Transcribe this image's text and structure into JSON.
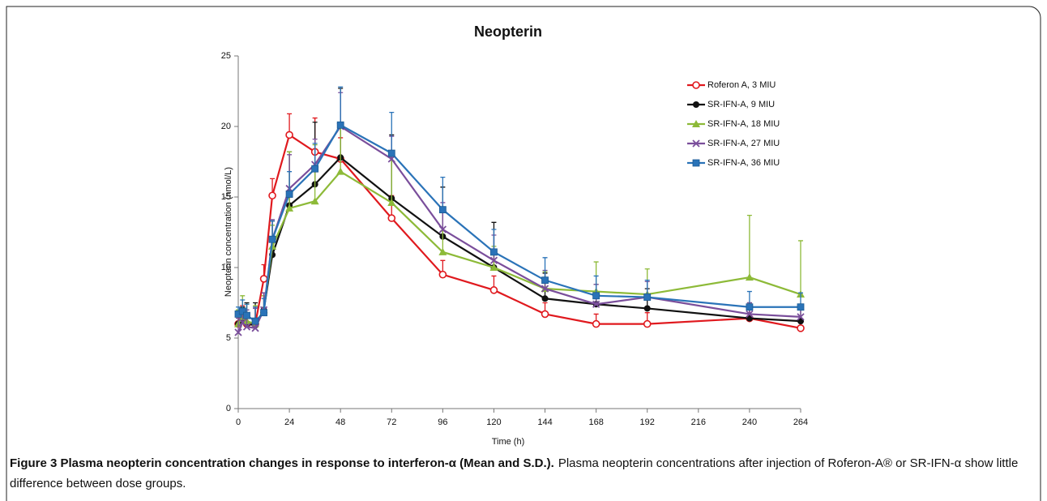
{
  "chart_data": {
    "type": "line",
    "title": "Neopterin",
    "x_label": "Time (h)",
    "y_label": "Neopterin concentration (nmol/L)",
    "caption_title": "Figure 3 Plasma neopterin concentration changes in response to interferon-α (Mean and S.D.).",
    "caption_text": "Plasma neopterin concentrations after injection of Roferon-A® or SR-IFN-α show little difference between dose groups.",
    "x": [
      0,
      2,
      4,
      8,
      12,
      16,
      24,
      36,
      48,
      72,
      96,
      120,
      144,
      168,
      192,
      240,
      264
    ],
    "xlim": [
      0,
      264
    ],
    "xticks": [
      0,
      24,
      48,
      72,
      96,
      120,
      144,
      168,
      192,
      216,
      240,
      264
    ],
    "ylim": [
      0,
      25
    ],
    "yticks": [
      0,
      5,
      10,
      15,
      20,
      25
    ],
    "grid": false,
    "legend": "upper right",
    "series": [
      {
        "name": "Roferon A, 3 MIU",
        "color": "#e0191e",
        "marker": "circle-open",
        "values": [
          6.0,
          6.3,
          6.0,
          6.0,
          9.2,
          15.1,
          19.4,
          18.2,
          17.7,
          13.5,
          9.5,
          8.4,
          6.7,
          6.0,
          6.0,
          6.4,
          5.7
        ],
        "errors": [
          0.8,
          1.0,
          1.0,
          1.2,
          1.0,
          1.2,
          1.5,
          2.4,
          1.5,
          1.6,
          1.0,
          1.0,
          0.8,
          0.7,
          0.8,
          0.7,
          0.6
        ]
      },
      {
        "name": "SR-IFN-A, 9 MIU",
        "color": "#111111",
        "marker": "circle",
        "values": [
          6.0,
          6.2,
          6.0,
          5.9,
          7.0,
          10.9,
          14.4,
          15.9,
          17.8,
          14.9,
          12.2,
          10.0,
          7.8,
          7.4,
          7.1,
          6.4,
          6.2
        ],
        "errors": [
          0.9,
          1.0,
          1.5,
          1.6,
          1.2,
          2.4,
          3.8,
          4.4,
          4.9,
          4.5,
          3.5,
          3.2,
          1.8,
          1.4,
          1.4,
          1.1,
          1.0
        ]
      },
      {
        "name": "SR-IFN-A, 18 MIU",
        "color": "#8dba38",
        "marker": "triangle",
        "values": [
          6.0,
          6.5,
          6.2,
          6.0,
          7.0,
          11.5,
          14.2,
          14.7,
          16.8,
          14.6,
          11.1,
          10.0,
          8.5,
          8.3,
          8.1,
          9.3,
          8.1
        ],
        "errors": [
          1.0,
          1.5,
          1.2,
          1.3,
          1.0,
          1.5,
          4.0,
          4.0,
          3.5,
          3.5,
          1.5,
          1.5,
          1.2,
          2.1,
          1.8,
          4.4,
          3.8
        ]
      },
      {
        "name": "SR-IFN-A, 27 MIU",
        "color": "#7a4e9b",
        "marker": "x",
        "values": [
          5.4,
          6.1,
          5.8,
          5.7,
          7.0,
          12.0,
          15.6,
          17.3,
          20.0,
          17.7,
          12.7,
          10.5,
          8.5,
          7.4,
          7.9,
          6.7,
          6.5
        ],
        "errors": [
          1.0,
          1.0,
          1.2,
          1.4,
          1.2,
          1.4,
          2.4,
          1.8,
          2.4,
          1.6,
          1.9,
          1.8,
          1.3,
          1.4,
          1.1,
          0.8,
          0.8
        ]
      },
      {
        "name": "SR-IFN-A, 36 MIU",
        "color": "#2a73b8",
        "marker": "square",
        "values": [
          6.7,
          6.9,
          6.6,
          6.2,
          6.8,
          12.0,
          15.2,
          17.0,
          20.1,
          18.1,
          14.1,
          11.1,
          9.1,
          8.0,
          7.9,
          7.2,
          7.2
        ],
        "errors": [
          0.5,
          0.8,
          0.8,
          1.0,
          1.0,
          1.3,
          1.6,
          1.8,
          2.7,
          2.9,
          2.3,
          1.6,
          1.6,
          1.4,
          1.2,
          1.1,
          1.0
        ]
      }
    ]
  }
}
